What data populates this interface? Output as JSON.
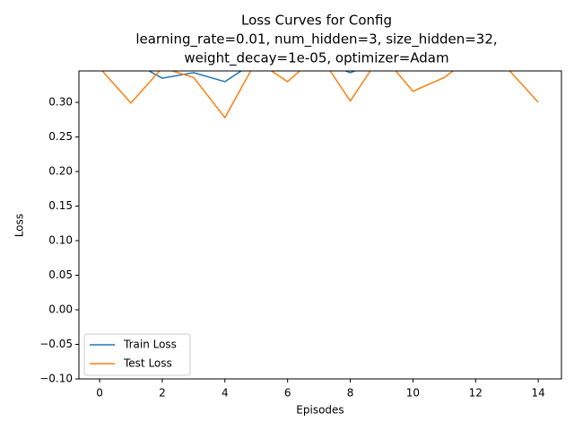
{
  "chart_data": {
    "type": "line",
    "title": [
      "Loss Curves for Config",
      "learning_rate=0.01, num_hidden=3, size_hidden=32,",
      "weight_decay=1e-05, optimizer=Adam"
    ],
    "x_label": "Episodes",
    "y_label": "Loss",
    "x": [
      0,
      1,
      2,
      3,
      4,
      5,
      6,
      7,
      8,
      9,
      10,
      11,
      12,
      13,
      14
    ],
    "series": [
      {
        "name": "Train Loss",
        "color": "#1f77b4",
        "values": [
          0.36,
          0.36,
          0.335,
          0.343,
          0.33,
          0.36,
          0.36,
          0.36,
          0.343,
          0.36,
          0.36,
          0.36,
          0.36,
          0.36,
          0.36
        ]
      },
      {
        "name": "Test Loss",
        "color": "#ff7f0e",
        "values": [
          0.35,
          0.299,
          0.35,
          0.336,
          0.278,
          0.36,
          0.33,
          0.37,
          0.302,
          0.37,
          0.316,
          0.336,
          0.37,
          0.35,
          0.3
        ]
      }
    ],
    "xlim": [
      -0.66,
      14.74
    ],
    "ylim": [
      -0.1,
      0.3455
    ],
    "xticks": [
      0,
      2,
      4,
      6,
      8,
      10,
      12,
      14
    ],
    "yticks": [
      {
        "value": -0.1,
        "label": "−0.10"
      },
      {
        "value": -0.05,
        "label": "−0.05"
      },
      {
        "value": 0,
        "label": "0.00"
      },
      {
        "value": 0.05,
        "label": "0.05"
      },
      {
        "value": 0.1,
        "label": "0.10"
      },
      {
        "value": 0.15,
        "label": "0.15"
      },
      {
        "value": 0.2,
        "label": "0.20"
      },
      {
        "value": 0.25,
        "label": "0.25"
      },
      {
        "value": 0.3,
        "label": "0.30"
      }
    ],
    "legend": "lower left"
  }
}
